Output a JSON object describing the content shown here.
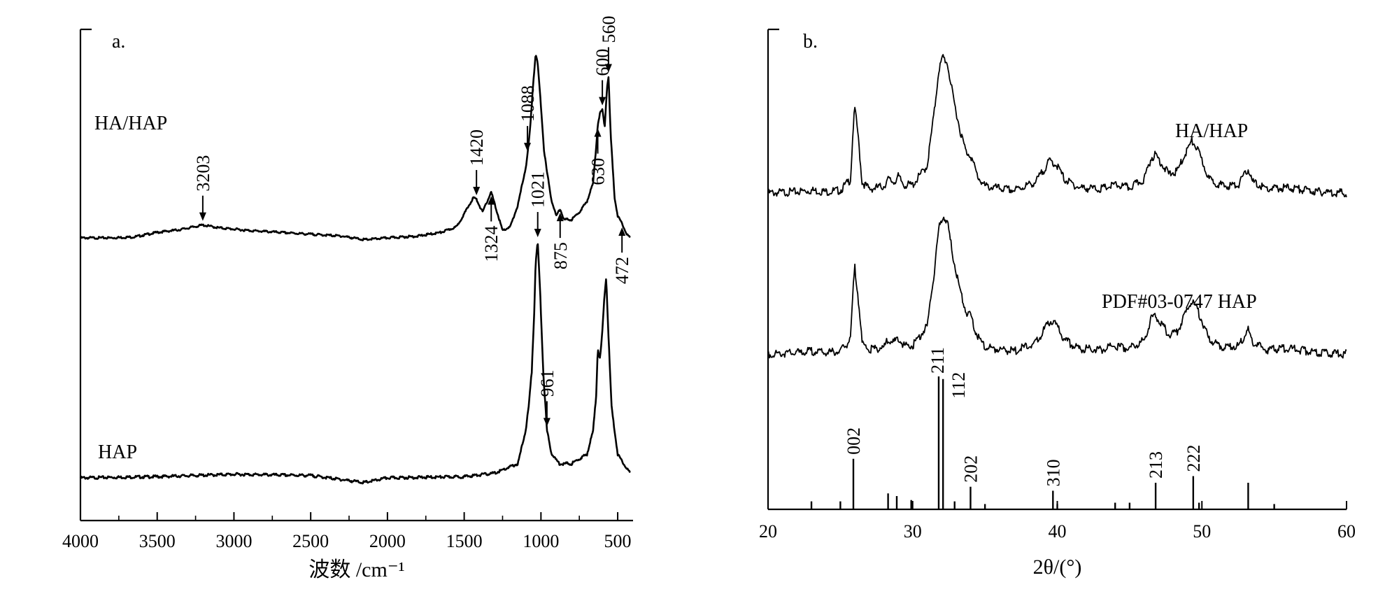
{
  "chart_data": [
    {
      "panel": "a.",
      "type": "line",
      "xlabel": "波数 /cm⁻¹",
      "ylabel": "",
      "xlim": [
        4000,
        400
      ],
      "x_reversed": true,
      "xticks": [
        4000,
        3500,
        3000,
        2500,
        2000,
        1500,
        1000,
        500
      ],
      "yticks": [],
      "grid": false,
      "series": [
        {
          "name": "HA/HAP",
          "points": [
            [
              4000,
              0.0
            ],
            [
              3800,
              0.0
            ],
            [
              3650,
              0.005
            ],
            [
              3500,
              0.03
            ],
            [
              3350,
              0.045
            ],
            [
              3203,
              0.07
            ],
            [
              3100,
              0.055
            ],
            [
              2900,
              0.04
            ],
            [
              2700,
              0.03
            ],
            [
              2500,
              0.02
            ],
            [
              2300,
              0.01
            ],
            [
              2150,
              -0.01
            ],
            [
              2000,
              0.0
            ],
            [
              1800,
              0.01
            ],
            [
              1650,
              0.03
            ],
            [
              1550,
              0.06
            ],
            [
              1480,
              0.16
            ],
            [
              1440,
              0.22
            ],
            [
              1420,
              0.21
            ],
            [
              1380,
              0.14
            ],
            [
              1340,
              0.22
            ],
            [
              1324,
              0.25
            ],
            [
              1300,
              0.18
            ],
            [
              1250,
              0.04
            ],
            [
              1200,
              0.06
            ],
            [
              1150,
              0.18
            ],
            [
              1100,
              0.38
            ],
            [
              1088,
              0.45
            ],
            [
              1070,
              0.6
            ],
            [
              1050,
              0.85
            ],
            [
              1035,
              1.0
            ],
            [
              1021,
              0.95
            ],
            [
              1000,
              0.72
            ],
            [
              980,
              0.48
            ],
            [
              961,
              0.36
            ],
            [
              930,
              0.2
            ],
            [
              900,
              0.12
            ],
            [
              875,
              0.16
            ],
            [
              850,
              0.1
            ],
            [
              800,
              0.1
            ],
            [
              750,
              0.14
            ],
            [
              700,
              0.2
            ],
            [
              660,
              0.3
            ],
            [
              640,
              0.5
            ],
            [
              630,
              0.62
            ],
            [
              615,
              0.68
            ],
            [
              600,
              0.7
            ],
            [
              585,
              0.6
            ],
            [
              570,
              0.82
            ],
            [
              560,
              0.88
            ],
            [
              545,
              0.55
            ],
            [
              520,
              0.22
            ],
            [
              500,
              0.12
            ],
            [
              472,
              0.08
            ],
            [
              440,
              0.02
            ],
            [
              420,
              0.0
            ]
          ]
        },
        {
          "name": "HAP",
          "points": [
            [
              4000,
              0.0
            ],
            [
              3500,
              0.005
            ],
            [
              3000,
              0.015
            ],
            [
              2500,
              0.01
            ],
            [
              2150,
              -0.02
            ],
            [
              2000,
              0.0
            ],
            [
              1500,
              0.005
            ],
            [
              1300,
              0.02
            ],
            [
              1150,
              0.06
            ],
            [
              1100,
              0.2
            ],
            [
              1080,
              0.3
            ],
            [
              1060,
              0.45
            ],
            [
              1045,
              0.68
            ],
            [
              1035,
              0.9
            ],
            [
              1021,
              1.0
            ],
            [
              1005,
              0.78
            ],
            [
              985,
              0.45
            ],
            [
              961,
              0.2
            ],
            [
              930,
              0.1
            ],
            [
              880,
              0.06
            ],
            [
              800,
              0.06
            ],
            [
              700,
              0.1
            ],
            [
              660,
              0.2
            ],
            [
              640,
              0.35
            ],
            [
              630,
              0.55
            ],
            [
              615,
              0.5
            ],
            [
              600,
              0.62
            ],
            [
              585,
              0.78
            ],
            [
              575,
              0.85
            ],
            [
              560,
              0.6
            ],
            [
              540,
              0.3
            ],
            [
              500,
              0.1
            ],
            [
              470,
              0.07
            ],
            [
              420,
              0.02
            ]
          ]
        }
      ],
      "annotations": [
        {
          "label": "3203",
          "x": 3203,
          "series": "HA/HAP",
          "side": "above"
        },
        {
          "label": "1420",
          "x": 1420,
          "series": "HA/HAP",
          "side": "above"
        },
        {
          "label": "1088",
          "x": 1088,
          "series": "HA/HAP",
          "side": "above"
        },
        {
          "label": "600",
          "x": 600,
          "series": "HA/HAP",
          "side": "above"
        },
        {
          "label": "560",
          "x": 560,
          "series": "HA/HAP",
          "side": "above"
        },
        {
          "label": "1324",
          "x": 1324,
          "series": "HA/HAP",
          "side": "below"
        },
        {
          "label": "875",
          "x": 875,
          "series": "HA/HAP",
          "side": "below"
        },
        {
          "label": "630",
          "x": 630,
          "series": "HA/HAP",
          "side": "below"
        },
        {
          "label": "472",
          "x": 472,
          "series": "HA/HAP",
          "side": "below"
        },
        {
          "label": "1021",
          "x": 1021,
          "series": "HAP",
          "side": "above"
        },
        {
          "label": "961",
          "x": 961,
          "series": "HAP",
          "side": "above"
        }
      ]
    },
    {
      "panel": "b.",
      "type": "line",
      "xlabel": "2θ/(°)",
      "ylabel": "",
      "xlim": [
        20,
        60
      ],
      "xticks": [
        20,
        30,
        40,
        50,
        60
      ],
      "yticks": [],
      "grid": false,
      "series": [
        {
          "name": "HA/HAP",
          "points": [
            [
              20,
              0.0
            ],
            [
              22,
              0.01
            ],
            [
              23,
              0.02
            ],
            [
              24,
              0.01
            ],
            [
              25,
              0.02
            ],
            [
              25.7,
              0.1
            ],
            [
              25.9,
              0.5
            ],
            [
              26.0,
              0.62
            ],
            [
              26.2,
              0.45
            ],
            [
              26.5,
              0.08
            ],
            [
              27,
              0.03
            ],
            [
              28,
              0.05
            ],
            [
              28.3,
              0.1
            ],
            [
              28.7,
              0.08
            ],
            [
              29,
              0.12
            ],
            [
              29.4,
              0.06
            ],
            [
              30,
              0.06
            ],
            [
              31,
              0.2
            ],
            [
              31.5,
              0.6
            ],
            [
              31.8,
              0.9
            ],
            [
              32.1,
              1.0
            ],
            [
              32.4,
              0.95
            ],
            [
              32.8,
              0.7
            ],
            [
              33.3,
              0.45
            ],
            [
              33.7,
              0.3
            ],
            [
              34.0,
              0.28
            ],
            [
              34.5,
              0.12
            ],
            [
              35,
              0.05
            ],
            [
              37,
              0.02
            ],
            [
              38.5,
              0.08
            ],
            [
              39.5,
              0.24
            ],
            [
              40,
              0.2
            ],
            [
              40.5,
              0.1
            ],
            [
              41.5,
              0.04
            ],
            [
              43,
              0.03
            ],
            [
              44,
              0.06
            ],
            [
              45,
              0.04
            ],
            [
              46,
              0.1
            ],
            [
              46.5,
              0.26
            ],
            [
              46.8,
              0.28
            ],
            [
              47.2,
              0.22
            ],
            [
              47.7,
              0.14
            ],
            [
              48.3,
              0.16
            ],
            [
              48.8,
              0.28
            ],
            [
              49.3,
              0.38
            ],
            [
              49.6,
              0.34
            ],
            [
              50,
              0.24
            ],
            [
              50.5,
              0.1
            ],
            [
              51.5,
              0.05
            ],
            [
              52.5,
              0.06
            ],
            [
              53.0,
              0.14
            ],
            [
              53.2,
              0.18
            ],
            [
              53.5,
              0.08
            ],
            [
              54.5,
              0.03
            ],
            [
              56,
              0.04
            ],
            [
              58,
              0.01
            ],
            [
              60,
              0.0
            ]
          ]
        },
        {
          "name": "PDF#03-0747 HAP",
          "points": [
            [
              20,
              0.0
            ],
            [
              22,
              0.01
            ],
            [
              23,
              0.02
            ],
            [
              24,
              0.01
            ],
            [
              25,
              0.02
            ],
            [
              25.7,
              0.1
            ],
            [
              25.9,
              0.5
            ],
            [
              26.0,
              0.62
            ],
            [
              26.2,
              0.45
            ],
            [
              26.5,
              0.08
            ],
            [
              27,
              0.03
            ],
            [
              28,
              0.05
            ],
            [
              28.3,
              0.1
            ],
            [
              28.7,
              0.08
            ],
            [
              29,
              0.12
            ],
            [
              29.4,
              0.06
            ],
            [
              30,
              0.06
            ],
            [
              31,
              0.2
            ],
            [
              31.5,
              0.6
            ],
            [
              31.8,
              0.9
            ],
            [
              32.1,
              1.0
            ],
            [
              32.4,
              0.95
            ],
            [
              32.8,
              0.7
            ],
            [
              33.3,
              0.45
            ],
            [
              33.7,
              0.3
            ],
            [
              34.0,
              0.28
            ],
            [
              34.5,
              0.12
            ],
            [
              35,
              0.05
            ],
            [
              37,
              0.02
            ],
            [
              38.5,
              0.08
            ],
            [
              39.5,
              0.24
            ],
            [
              40,
              0.2
            ],
            [
              40.5,
              0.1
            ],
            [
              41.5,
              0.04
            ],
            [
              43,
              0.03
            ],
            [
              44,
              0.06
            ],
            [
              45,
              0.04
            ],
            [
              46,
              0.1
            ],
            [
              46.5,
              0.26
            ],
            [
              46.8,
              0.28
            ],
            [
              47.2,
              0.22
            ],
            [
              47.7,
              0.14
            ],
            [
              48.3,
              0.16
            ],
            [
              48.8,
              0.28
            ],
            [
              49.3,
              0.38
            ],
            [
              49.6,
              0.34
            ],
            [
              50,
              0.24
            ],
            [
              50.5,
              0.1
            ],
            [
              51.5,
              0.05
            ],
            [
              52.5,
              0.06
            ],
            [
              53.0,
              0.14
            ],
            [
              53.2,
              0.18
            ],
            [
              53.5,
              0.08
            ],
            [
              54.5,
              0.03
            ],
            [
              56,
              0.04
            ],
            [
              58,
              0.01
            ],
            [
              60,
              0.0
            ]
          ]
        }
      ],
      "reference_lines": [
        {
          "x": 23.0,
          "intensity": 0.06,
          "label": ""
        },
        {
          "x": 25.0,
          "intensity": 0.06,
          "label": ""
        },
        {
          "x": 25.9,
          "intensity": 0.38,
          "label": "002"
        },
        {
          "x": 28.3,
          "intensity": 0.12,
          "label": ""
        },
        {
          "x": 28.9,
          "intensity": 0.1,
          "label": ""
        },
        {
          "x": 29.9,
          "intensity": 0.07,
          "label": ""
        },
        {
          "x": 31.8,
          "intensity": 1.0,
          "label": "211"
        },
        {
          "x": 32.1,
          "intensity": 0.98,
          "label": "112"
        },
        {
          "x": 32.9,
          "intensity": 0.06,
          "label": ""
        },
        {
          "x": 34.0,
          "intensity": 0.17,
          "label": "202"
        },
        {
          "x": 35.0,
          "intensity": 0.04,
          "label": ""
        },
        {
          "x": 39.7,
          "intensity": 0.14,
          "label": "310"
        },
        {
          "x": 40.0,
          "intensity": 0.04,
          "label": ""
        },
        {
          "x": 44.0,
          "intensity": 0.05,
          "label": ""
        },
        {
          "x": 45.0,
          "intensity": 0.05,
          "label": ""
        },
        {
          "x": 46.8,
          "intensity": 0.2,
          "label": "213"
        },
        {
          "x": 49.4,
          "intensity": 0.25,
          "label": "222"
        },
        {
          "x": 49.8,
          "intensity": 0.05,
          "label": ""
        },
        {
          "x": 53.2,
          "intensity": 0.2,
          "label": ""
        },
        {
          "x": 55.0,
          "intensity": 0.04,
          "label": ""
        }
      ]
    }
  ]
}
